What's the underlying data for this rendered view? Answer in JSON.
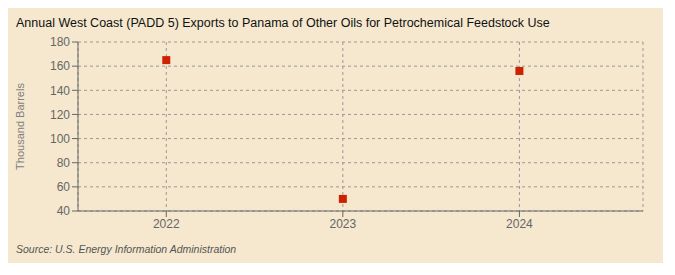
{
  "chart_data": {
    "type": "scatter",
    "title": "Annual West Coast (PADD 5) Exports to Panama of Other Oils for Petrochemical Feedstock Use",
    "ylabel": "Thousand Barrels",
    "annotations": [
      "Source: U.S. Energy Information Administration"
    ],
    "x": [
      2022,
      2023,
      2024
    ],
    "values": [
      165,
      50,
      156
    ],
    "color": "#cc2200",
    "marker": "square",
    "xlim": [
      2021.5,
      2024.7
    ],
    "xticks": [
      2022,
      2023,
      2024
    ],
    "ylim": [
      40,
      180
    ],
    "yticks": [
      40,
      60,
      80,
      100,
      120,
      140,
      160,
      180
    ],
    "grid": true
  }
}
